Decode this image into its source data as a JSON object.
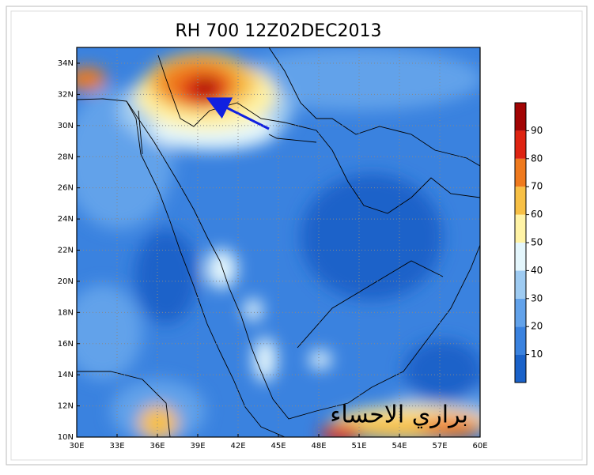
{
  "title": "RH 700 12Z02DEC2013",
  "map": {
    "lat_labels": [
      "34N",
      "32N",
      "30N",
      "28N",
      "26N",
      "24N",
      "22N",
      "20N",
      "18N",
      "16N",
      "14N",
      "12N",
      "10N"
    ],
    "lon_labels": [
      "30E",
      "33E",
      "36E",
      "39E",
      "42E",
      "45E",
      "48E",
      "51E",
      "54E",
      "57E",
      "60E"
    ]
  },
  "colorbar": {
    "range": [
      0,
      100
    ],
    "ticks": [
      10,
      20,
      30,
      40,
      50,
      60,
      70,
      80,
      90
    ],
    "colors": [
      "#1a62c9",
      "#3a82df",
      "#62a2ea",
      "#9ecbf2",
      "#e4f6fc",
      "#fff3a6",
      "#f7c046",
      "#ef7a1e",
      "#de2412",
      "#a20404"
    ]
  },
  "watermark": "براري الاحساء"
}
